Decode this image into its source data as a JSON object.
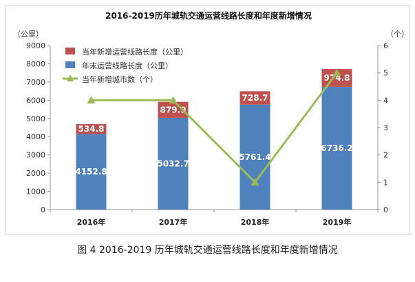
{
  "caption": "图 4   2016-2019 历年城轨交通运营线路长度和年度新增情况",
  "chart_data": {
    "type": "bar",
    "title": "2016-2019历年城轨交通运营线路长度和年度新增情况",
    "categories": [
      "2016年",
      "2017年",
      "2018年",
      "2019年"
    ],
    "y_left_unit": "（公里）",
    "y_right_unit": "（个）",
    "ylim_left": [
      0,
      9000
    ],
    "ylim_right": [
      0,
      6
    ],
    "yticks_left": [
      "0",
      "1000",
      "2000",
      "3000",
      "4000",
      "5000",
      "6000",
      "7000",
      "8000",
      "9000"
    ],
    "yticks_right": [
      "0",
      "1",
      "2",
      "3",
      "4",
      "5",
      "6"
    ],
    "stacked": true,
    "series": [
      {
        "name": "年末运营线路长度（公里）",
        "type": "bar",
        "axis": "left",
        "color": "#4f81bd",
        "values": [
          4152.8,
          5032.7,
          5761.4,
          6736.2
        ],
        "labels": [
          "4152.8",
          "5032.7",
          "5761.4",
          "6736.2"
        ]
      },
      {
        "name": "当年新增运营线路长度（公里）",
        "type": "bar",
        "axis": "left",
        "color": "#c0504d",
        "values": [
          534.8,
          879.9,
          728.7,
          974.8
        ],
        "labels": [
          "534.8",
          "879.9",
          "728.7",
          "974.8"
        ]
      },
      {
        "name": "当年新增城市数（个）",
        "type": "line",
        "axis": "right",
        "color": "#9bbb59",
        "values": [
          4,
          4,
          1,
          5
        ]
      }
    ],
    "legend_order": [
      1,
      0,
      2
    ],
    "legend_placement": "top-left",
    "grid": false
  }
}
